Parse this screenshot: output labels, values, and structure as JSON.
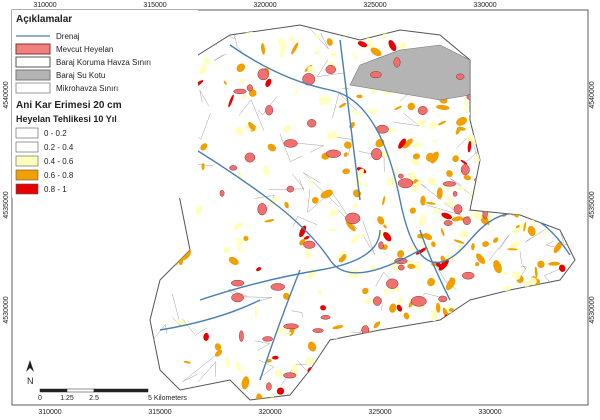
{
  "legend": {
    "title": "Açıklamalar",
    "items": [
      "Drenaj",
      "Mevcut Heyelan",
      "Baraj Koruma Havza Sınırı",
      "Baraj Su Kotu",
      "Mikrohavza Sınırı"
    ],
    "subtitle": "Ani Kar Erimesi 20 cm",
    "hazard_title": "Heyelan Tehlikesi 10 Yıl",
    "classes": [
      "0 - 0.2",
      "0.2 - 0.4",
      "0.4 - 0.6",
      "0.6 - 0.8",
      "0.8 - 1"
    ]
  },
  "grid": {
    "x_ticks": [
      310000,
      315000,
      320000,
      325000,
      330000
    ],
    "y_ticks": [
      4540000,
      4535000,
      4530000
    ]
  },
  "scale_bar": {
    "labels": [
      "0",
      "1.25",
      "2.5",
      "5 Kilometers"
    ]
  },
  "north": "N"
}
